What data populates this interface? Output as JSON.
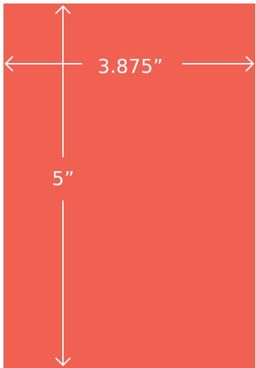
{
  "diagram": {
    "width_label": "3.875”",
    "height_label": "5”"
  },
  "colors": {
    "panel": "#f06151",
    "lines": "#ffffff"
  }
}
